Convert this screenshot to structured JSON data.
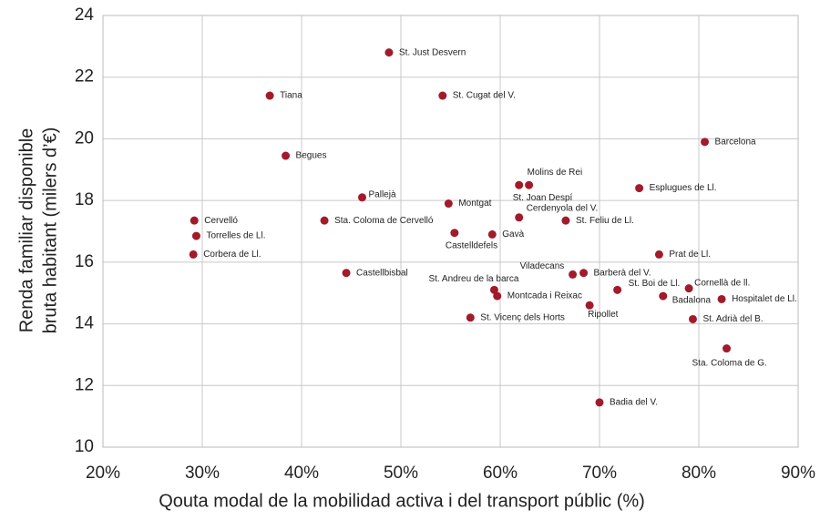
{
  "chart_data": {
    "type": "scatter",
    "xlabel": "Qouta modal de la mobilidad activa i del transport públic (%)",
    "ylabel": [
      "Renda familiar disponible",
      "bruta habitant (milers d’€)"
    ],
    "color": "#a11b2b",
    "grid": true,
    "xlim": [
      20,
      90
    ],
    "xticks": [
      {
        "value": 20,
        "label": "20%"
      },
      {
        "value": 30,
        "label": "30%"
      },
      {
        "value": 40,
        "label": "40%"
      },
      {
        "value": 50,
        "label": "50%"
      },
      {
        "value": 60,
        "label": "60%"
      },
      {
        "value": 70,
        "label": "70%"
      },
      {
        "value": 80,
        "label": "80%"
      },
      {
        "value": 90,
        "label": "90%"
      }
    ],
    "ylim": [
      10,
      24
    ],
    "yticks": [
      10,
      12,
      14,
      16,
      18,
      20,
      22,
      24
    ],
    "point_labels": [
      "St. Just Desvern",
      "Tiana",
      "St. Cugat del V.",
      "Barcelona",
      "Begues",
      "St. Joan Despí",
      "Molins de Rei",
      "Esplugues de Ll.",
      "Pallejà",
      "Montgat",
      "Cervelló",
      "Sta. Coloma de Cervelló",
      "Cerdenyola del V.",
      "St. Feliu de Ll.",
      "Torrelles de Ll.",
      "Castelldefels",
      "Gavà",
      "Corbera de Ll.",
      "Prat de Ll.",
      "Castellbisbal",
      "Viladecans",
      "Barberà del V.",
      "Cornellà de ll.",
      "St. Boi de Ll.",
      "St. Andreu de la barca",
      "Montcada i Reixac",
      "Badalona",
      "Hospitalet de Ll.",
      "Ripollet",
      "St. Vicenç dels Horts",
      "St. Adrià del B.",
      "Sta. Coloma de G.",
      "Badia del V."
    ],
    "x": [
      48.8,
      36.8,
      54.2,
      80.6,
      38.4,
      61.9,
      62.9,
      74.0,
      46.1,
      54.8,
      29.2,
      42.3,
      61.9,
      66.6,
      29.4,
      55.4,
      59.2,
      29.1,
      76.0,
      44.5,
      67.3,
      68.4,
      79.0,
      71.8,
      59.4,
      59.7,
      76.4,
      82.3,
      69.0,
      57.0,
      79.4,
      82.8,
      70.0
    ],
    "values": [
      22.8,
      21.4,
      21.4,
      19.9,
      19.45,
      18.5,
      18.5,
      18.4,
      18.1,
      17.9,
      17.35,
      17.35,
      17.45,
      17.35,
      16.85,
      16.95,
      16.9,
      16.25,
      16.25,
      15.65,
      15.6,
      15.65,
      15.15,
      15.1,
      15.1,
      14.9,
      14.9,
      14.8,
      14.6,
      14.2,
      14.15,
      13.2,
      11.45
    ]
  }
}
